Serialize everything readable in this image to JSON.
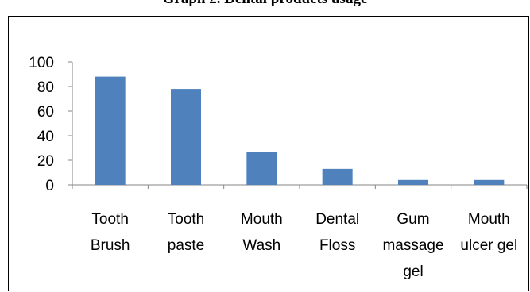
{
  "chart_data": {
    "type": "bar",
    "title": "Graph 2. Dental products usage",
    "categories": [
      [
        "Tooth",
        "Brush"
      ],
      [
        "Tooth",
        "paste"
      ],
      [
        "Mouth",
        "Wash"
      ],
      [
        "Dental",
        "Floss"
      ],
      [
        "Gum",
        "massage",
        "gel"
      ],
      [
        "Mouth",
        "ulcer gel"
      ]
    ],
    "values": [
      88,
      78,
      27,
      13,
      4,
      4
    ],
    "ylim": [
      0,
      100
    ],
    "yticks": [
      0,
      20,
      40,
      60,
      80,
      100
    ],
    "grid": false,
    "bar_color": "#4f81bd",
    "xlabel": "",
    "ylabel": ""
  }
}
